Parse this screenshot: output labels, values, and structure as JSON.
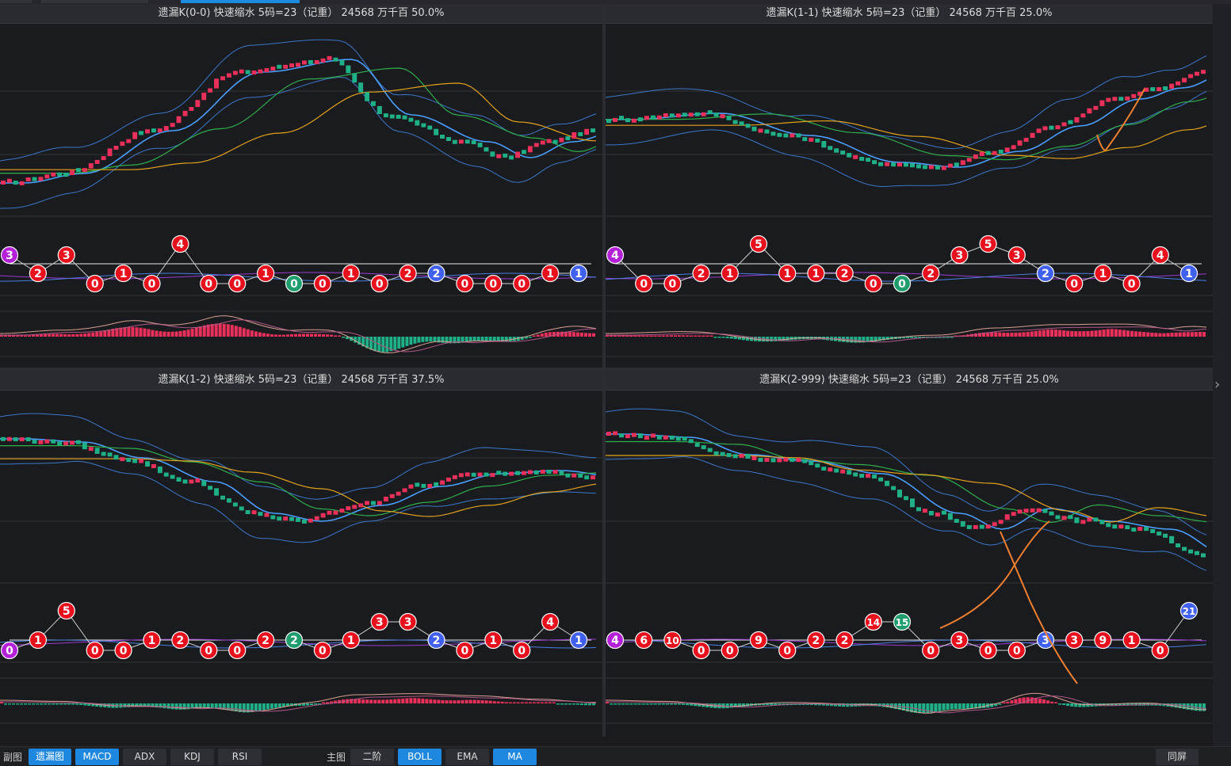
{
  "panels": [
    {
      "title": "遗漏K(0-0)  快速缩水  5码=23（记重）  24568  万千百  50.0%"
    },
    {
      "title": "遗漏K(1-1)  快速缩水  5码=23（记重）  24568  万千百  25.0%"
    },
    {
      "title": "遗漏K(1-2)  快速缩水  5码=23（记重）  24568  万千百  37.5%"
    },
    {
      "title": "遗漏K(2-999)  快速缩水  5码=23（记重）  24568  万千百  25.0%"
    }
  ],
  "markers": [
    [
      {
        "v": "3",
        "c": "purple",
        "y": "high"
      },
      {
        "v": "2",
        "c": "red",
        "y": "mid"
      },
      {
        "v": "3",
        "c": "red",
        "y": "high"
      },
      {
        "v": "0",
        "c": "red",
        "y": "low"
      },
      {
        "v": "1",
        "c": "red",
        "y": "mid"
      },
      {
        "v": "0",
        "c": "red",
        "y": "low"
      },
      {
        "v": "4",
        "c": "red",
        "y": "top"
      },
      {
        "v": "0",
        "c": "red",
        "y": "low"
      },
      {
        "v": "0",
        "c": "red",
        "y": "low"
      },
      {
        "v": "1",
        "c": "red",
        "y": "mid"
      },
      {
        "v": "0",
        "c": "green",
        "y": "low"
      },
      {
        "v": "0",
        "c": "red",
        "y": "low"
      },
      {
        "v": "1",
        "c": "red",
        "y": "mid"
      },
      {
        "v": "0",
        "c": "red",
        "y": "low"
      },
      {
        "v": "2",
        "c": "red",
        "y": "mid"
      },
      {
        "v": "2",
        "c": "blue",
        "y": "mid"
      },
      {
        "v": "0",
        "c": "red",
        "y": "low"
      },
      {
        "v": "0",
        "c": "red",
        "y": "low"
      },
      {
        "v": "0",
        "c": "red",
        "y": "low"
      },
      {
        "v": "1",
        "c": "red",
        "y": "mid"
      },
      {
        "v": "1",
        "c": "blue",
        "y": "mid"
      }
    ],
    [
      {
        "v": "4",
        "c": "purple",
        "y": "high"
      },
      {
        "v": "0",
        "c": "red",
        "y": "low"
      },
      {
        "v": "0",
        "c": "red",
        "y": "low"
      },
      {
        "v": "2",
        "c": "red",
        "y": "mid"
      },
      {
        "v": "1",
        "c": "red",
        "y": "mid"
      },
      {
        "v": "5",
        "c": "red",
        "y": "top"
      },
      {
        "v": "1",
        "c": "red",
        "y": "mid"
      },
      {
        "v": "1",
        "c": "red",
        "y": "mid"
      },
      {
        "v": "2",
        "c": "red",
        "y": "mid"
      },
      {
        "v": "0",
        "c": "red",
        "y": "low"
      },
      {
        "v": "0",
        "c": "green",
        "y": "low"
      },
      {
        "v": "2",
        "c": "red",
        "y": "mid"
      },
      {
        "v": "3",
        "c": "red",
        "y": "high"
      },
      {
        "v": "5",
        "c": "red",
        "y": "top"
      },
      {
        "v": "3",
        "c": "red",
        "y": "high"
      },
      {
        "v": "2",
        "c": "blue",
        "y": "mid"
      },
      {
        "v": "0",
        "c": "red",
        "y": "low"
      },
      {
        "v": "1",
        "c": "red",
        "y": "mid"
      },
      {
        "v": "0",
        "c": "red",
        "y": "low"
      },
      {
        "v": "4",
        "c": "red",
        "y": "high"
      },
      {
        "v": "1",
        "c": "blue",
        "y": "mid"
      }
    ],
    [
      {
        "v": "0",
        "c": "purple",
        "y": "low"
      },
      {
        "v": "1",
        "c": "red",
        "y": "mid"
      },
      {
        "v": "5",
        "c": "red",
        "y": "top"
      },
      {
        "v": "0",
        "c": "red",
        "y": "low"
      },
      {
        "v": "0",
        "c": "red",
        "y": "low"
      },
      {
        "v": "1",
        "c": "red",
        "y": "mid"
      },
      {
        "v": "2",
        "c": "red",
        "y": "mid"
      },
      {
        "v": "0",
        "c": "red",
        "y": "low"
      },
      {
        "v": "0",
        "c": "red",
        "y": "low"
      },
      {
        "v": "2",
        "c": "red",
        "y": "mid"
      },
      {
        "v": "2",
        "c": "green",
        "y": "mid"
      },
      {
        "v": "0",
        "c": "red",
        "y": "low"
      },
      {
        "v": "1",
        "c": "red",
        "y": "mid"
      },
      {
        "v": "3",
        "c": "red",
        "y": "high"
      },
      {
        "v": "3",
        "c": "red",
        "y": "high"
      },
      {
        "v": "2",
        "c": "blue",
        "y": "mid"
      },
      {
        "v": "0",
        "c": "red",
        "y": "low"
      },
      {
        "v": "1",
        "c": "red",
        "y": "mid"
      },
      {
        "v": "0",
        "c": "red",
        "y": "low"
      },
      {
        "v": "4",
        "c": "red",
        "y": "high"
      },
      {
        "v": "1",
        "c": "blue",
        "y": "mid"
      }
    ],
    [
      {
        "v": "4",
        "c": "purple",
        "y": "mid"
      },
      {
        "v": "6",
        "c": "red",
        "y": "mid"
      },
      {
        "v": "10",
        "c": "red",
        "y": "mid"
      },
      {
        "v": "0",
        "c": "red",
        "y": "low"
      },
      {
        "v": "0",
        "c": "red",
        "y": "low"
      },
      {
        "v": "9",
        "c": "red",
        "y": "mid"
      },
      {
        "v": "0",
        "c": "red",
        "y": "low"
      },
      {
        "v": "2",
        "c": "red",
        "y": "mid"
      },
      {
        "v": "2",
        "c": "red",
        "y": "mid"
      },
      {
        "v": "14",
        "c": "red",
        "y": "high"
      },
      {
        "v": "15",
        "c": "green",
        "y": "high"
      },
      {
        "v": "0",
        "c": "red",
        "y": "low"
      },
      {
        "v": "3",
        "c": "red",
        "y": "mid"
      },
      {
        "v": "0",
        "c": "red",
        "y": "low"
      },
      {
        "v": "0",
        "c": "red",
        "y": "low"
      },
      {
        "v": "3",
        "c": "blue",
        "y": "mid"
      },
      {
        "v": "3",
        "c": "red",
        "y": "mid"
      },
      {
        "v": "9",
        "c": "red",
        "y": "mid"
      },
      {
        "v": "1",
        "c": "red",
        "y": "mid"
      },
      {
        "v": "0",
        "c": "red",
        "y": "low"
      },
      {
        "v": "21",
        "c": "blue",
        "y": "top"
      }
    ]
  ],
  "colors": {
    "red": "#e8101c",
    "blue": "#4060f0",
    "green": "#1f9d6d",
    "purple": "#b420d8",
    "up": "#e8305a",
    "down": "#1fb088",
    "bollMid": "#4a9eff",
    "bollBand": "#3b78c8",
    "ma1": "#2fae4a",
    "ma2": "#e3a21a",
    "macdFast": "#d8a090",
    "macdSlow": "#b05888",
    "annot": "#f08030"
  },
  "bottombar": {
    "sub_label": "副图",
    "sub_buttons": [
      {
        "label": "遗漏图",
        "active": true
      },
      {
        "label": "MACD",
        "active": true
      },
      {
        "label": "ADX",
        "active": false
      },
      {
        "label": "KDJ",
        "active": false
      },
      {
        "label": "RSI",
        "active": false
      }
    ],
    "main_label": "主图",
    "main_buttons": [
      {
        "label": "二阶",
        "active": false
      },
      {
        "label": "BOLL",
        "active": true
      },
      {
        "label": "EMA",
        "active": false
      },
      {
        "label": "MA",
        "active": true
      }
    ],
    "sync_label": "同屏"
  },
  "nav": {
    "arrow": "›"
  }
}
